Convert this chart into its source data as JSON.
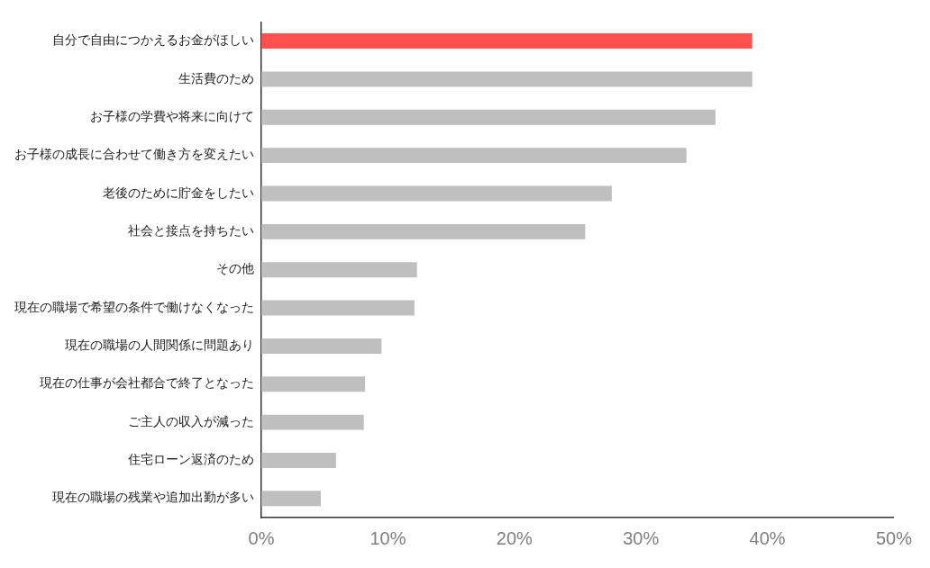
{
  "chart_data": {
    "type": "bar",
    "orientation": "horizontal",
    "categories": [
      "自分で自由につかえるお金がほしい",
      "生活費のため",
      "お子様の学費や将来に向けて",
      "お子様の成長に合わせて働き方を変えたい",
      "老後のために貯金をしたい",
      "社会と接点を持ちたい",
      "その他",
      "現在の職場で希望の条件で働けなくなった",
      "現在の職場の人間関係に問題あり",
      "現在の仕事が会社都合で終了となった",
      "ご主人の収入が減った",
      "住宅ローン返済のため",
      "現在の職場の残業や追加出勤が多い"
    ],
    "values": [
      38.8,
      38.8,
      35.9,
      33.6,
      27.7,
      25.6,
      12.3,
      12.1,
      9.5,
      8.2,
      8.1,
      5.9,
      4.7
    ],
    "colors": [
      "#ff5050",
      "#bfbfbf",
      "#bfbfbf",
      "#bfbfbf",
      "#bfbfbf",
      "#bfbfbf",
      "#bfbfbf",
      "#bfbfbf",
      "#bfbfbf",
      "#bfbfbf",
      "#bfbfbf",
      "#bfbfbf",
      "#bfbfbf"
    ],
    "xlim": [
      0,
      50
    ],
    "xticks": [
      {
        "value": 0,
        "label": "0%"
      },
      {
        "value": 10,
        "label": "10%"
      },
      {
        "value": 20,
        "label": "20%"
      },
      {
        "value": 30,
        "label": "30%"
      },
      {
        "value": 40,
        "label": "40%"
      },
      {
        "value": 50,
        "label": "50%"
      }
    ],
    "grid": false,
    "legend": false
  }
}
